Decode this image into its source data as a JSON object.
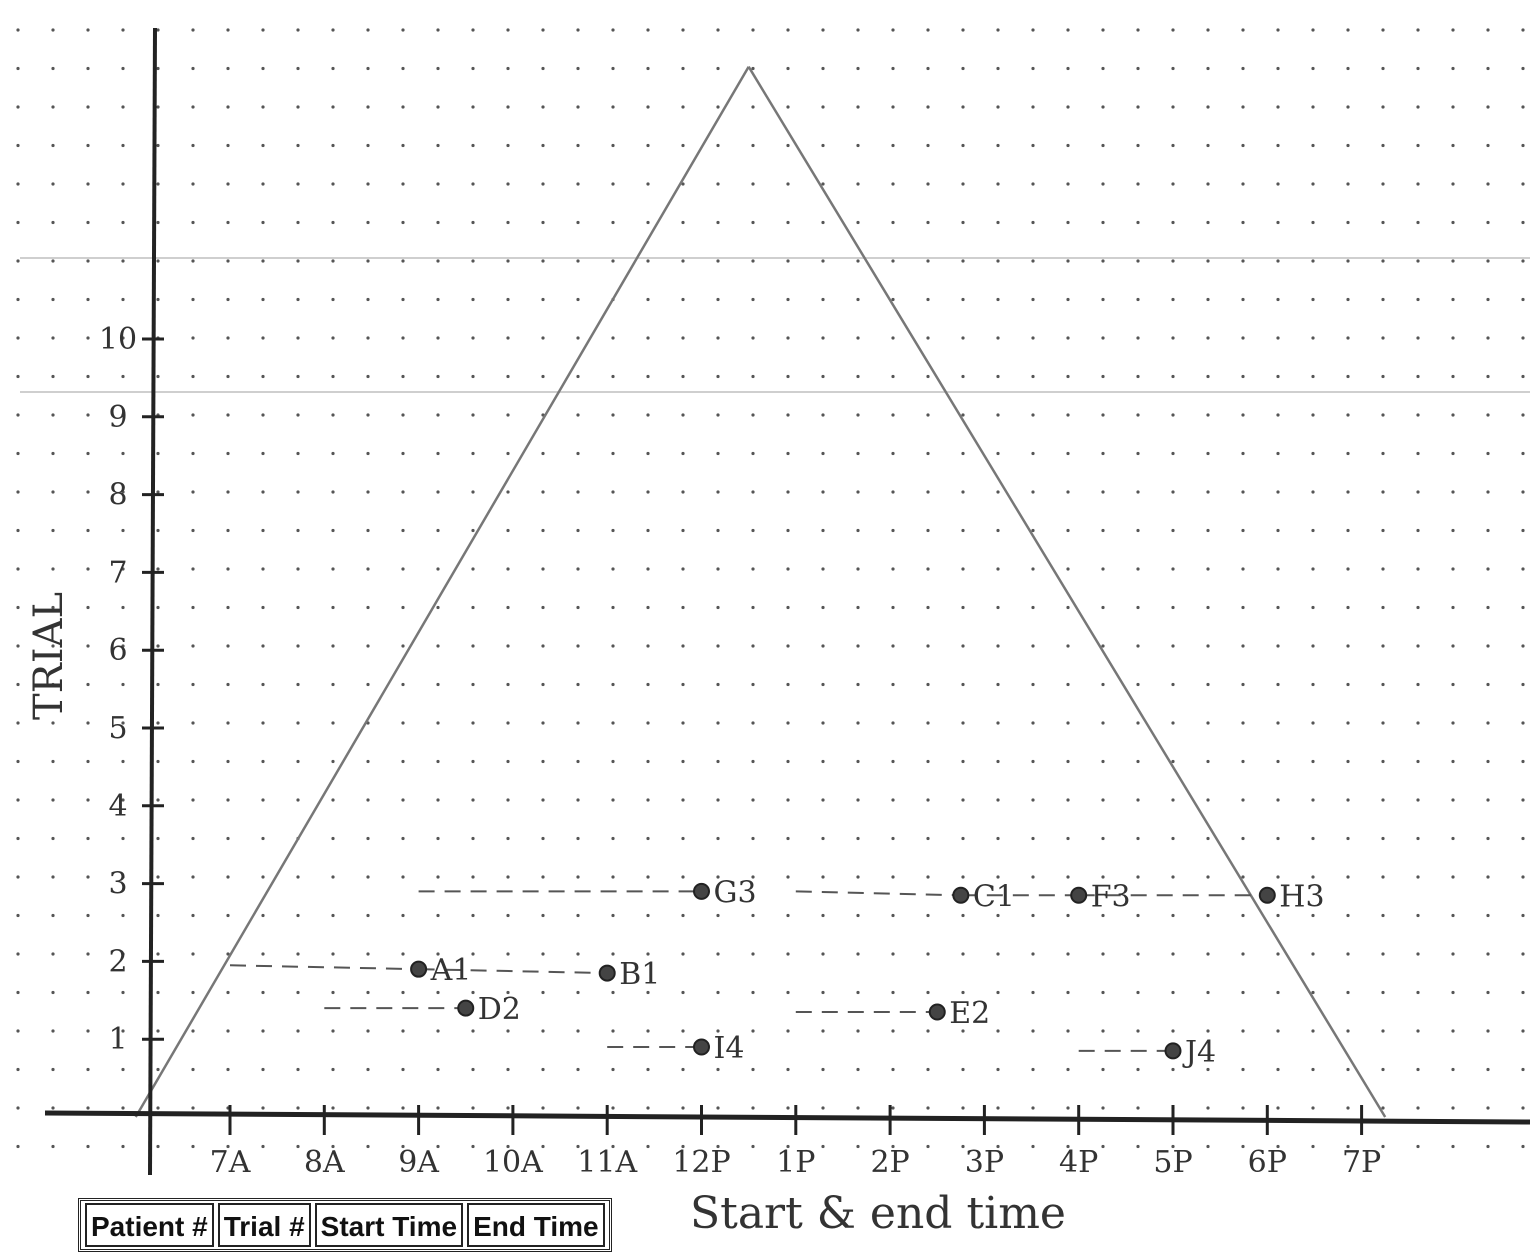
{
  "chart_data": {
    "type": "scatter",
    "title": "",
    "xlabel": "Start & end time",
    "ylabel": "TRIAL",
    "x_ticks": [
      "7A",
      "8A",
      "9A",
      "10A",
      "11A",
      "12P",
      "1P",
      "2P",
      "3P",
      "4P",
      "5P",
      "6P",
      "7P"
    ],
    "y_ticks": [
      "1",
      "2",
      "3",
      "4",
      "5",
      "6",
      "7",
      "8",
      "9",
      "10"
    ],
    "xlim": [
      "6:15",
      "19:30"
    ],
    "ylim": [
      0,
      13.5
    ],
    "grid": "dot grid",
    "envelope_triangle": [
      [
        "6:00",
        0
      ],
      [
        "12:30",
        13.5
      ],
      [
        "19:15",
        0
      ]
    ],
    "points": [
      {
        "label": "A1",
        "x": "9:00",
        "y": 1.9
      },
      {
        "label": "B1",
        "x": "11:00",
        "y": 1.85
      },
      {
        "label": "C1",
        "x": "14:45",
        "y": 2.85
      },
      {
        "label": "D2",
        "x": "9:30",
        "y": 1.4
      },
      {
        "label": "E2",
        "x": "14:30",
        "y": 1.35
      },
      {
        "label": "F3",
        "x": "16:00",
        "y": 2.85
      },
      {
        "label": "G3",
        "x": "12:00",
        "y": 2.9
      },
      {
        "label": "H3",
        "x": "18:00",
        "y": 2.85
      },
      {
        "label": "I4",
        "x": "12:00",
        "y": 0.9
      },
      {
        "label": "J4",
        "x": "17:00",
        "y": 0.85
      }
    ],
    "connectors": [
      {
        "from": [
          "7:00",
          1.95
        ],
        "to": [
          "9:00",
          1.9
        ]
      },
      {
        "from": [
          "9:00",
          1.9
        ],
        "to": [
          "11:00",
          1.85
        ]
      },
      {
        "from": [
          "8:00",
          1.4
        ],
        "to": [
          "9:30",
          1.4
        ]
      },
      {
        "from": [
          "13:00",
          1.35
        ],
        "to": [
          "14:30",
          1.35
        ]
      },
      {
        "from": [
          "9:00",
          2.9
        ],
        "to": [
          "12:00",
          2.9
        ]
      },
      {
        "from": [
          "13:00",
          2.9
        ],
        "to": [
          "14:45",
          2.85
        ]
      },
      {
        "from": [
          "14:45",
          2.85
        ],
        "to": [
          "16:00",
          2.85
        ]
      },
      {
        "from": [
          "16:00",
          2.85
        ],
        "to": [
          "18:00",
          2.85
        ]
      },
      {
        "from": [
          "11:00",
          0.9
        ],
        "to": [
          "12:00",
          0.9
        ]
      },
      {
        "from": [
          "16:00",
          0.85
        ],
        "to": [
          "17:00",
          0.85
        ]
      }
    ]
  },
  "table": {
    "headers": [
      "Patient #",
      "Trial #",
      "Start Time",
      "End Time"
    ]
  }
}
